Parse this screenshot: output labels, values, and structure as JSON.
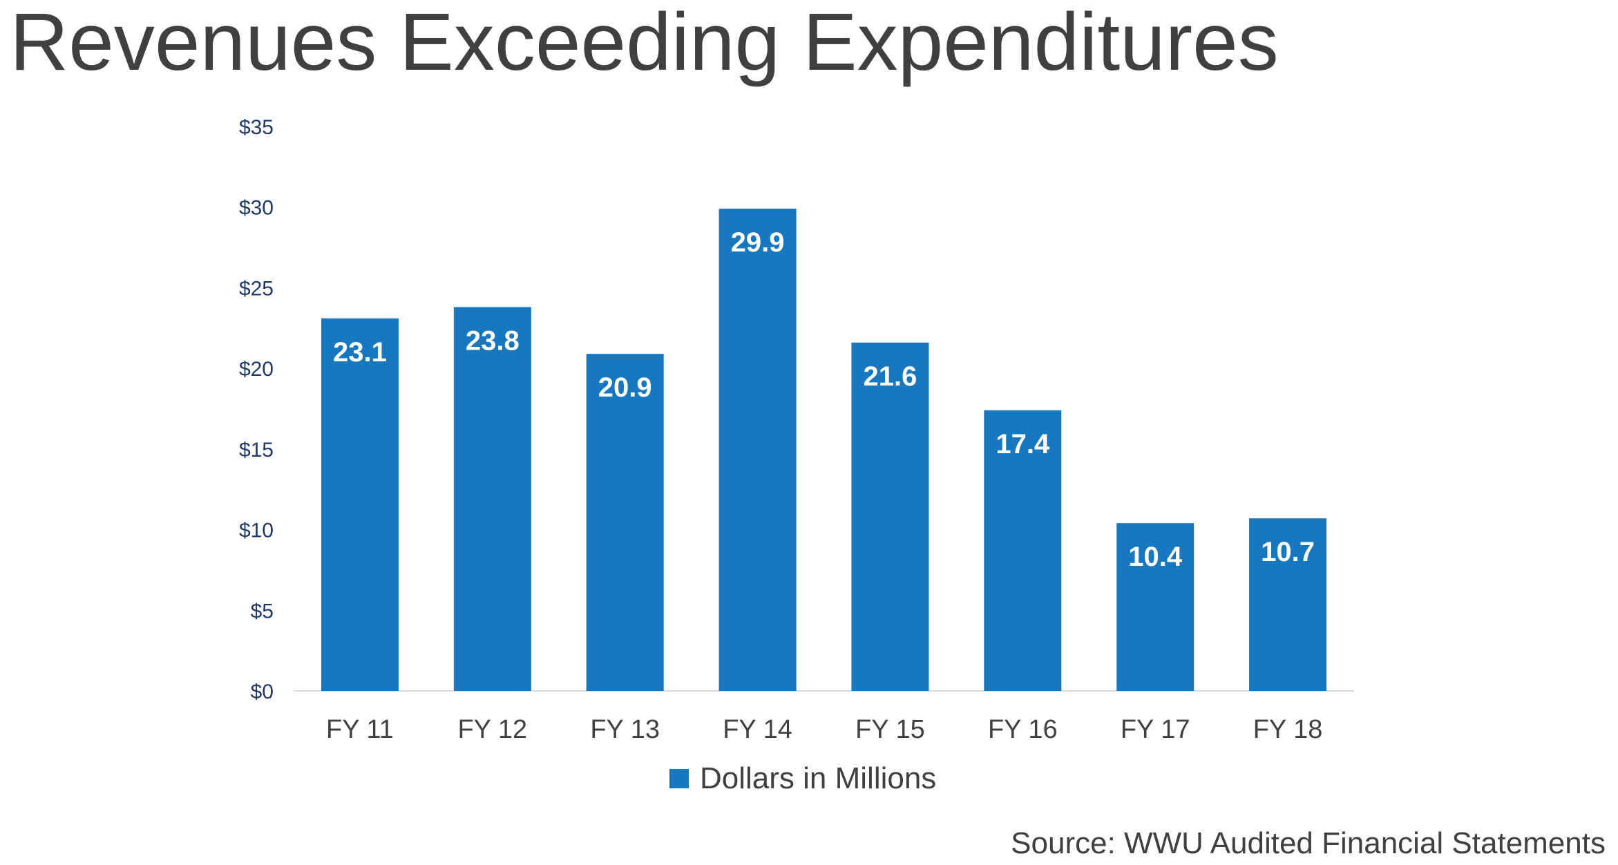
{
  "page": {
    "title": "Revenues Exceeding Expenditures",
    "source": "Source:  WWU Audited Financial Statements"
  },
  "chart_data": {
    "type": "bar",
    "title": "",
    "xlabel": "",
    "ylabel": "",
    "categories": [
      "FY 11",
      "FY 12",
      "FY 13",
      "FY 14",
      "FY 15",
      "FY 16",
      "FY 17",
      "FY 18"
    ],
    "series": [
      {
        "name": "Dollars in Millions",
        "values": [
          23.1,
          23.8,
          20.9,
          29.9,
          21.6,
          17.4,
          10.4,
          10.7
        ],
        "value_labels": [
          "23.1",
          "23.8",
          "20.9",
          "29.9",
          "21.6",
          "17.4",
          "10.4",
          "10.7"
        ]
      }
    ],
    "ylim": [
      0,
      35
    ],
    "y_ticks": [
      0,
      5,
      10,
      15,
      20,
      25,
      30,
      35
    ],
    "y_tick_labels": [
      "$0",
      "$5",
      "$10",
      "$15",
      "$20",
      "$25",
      "$30",
      "$35"
    ],
    "grid": false,
    "legend_position": "bottom-center",
    "colors": {
      "bar": "#1778C0",
      "y_tick_text": "#1F3864",
      "x_tick_text": "#404040",
      "axis_line": "#D9D9D9",
      "data_label": "#FFFFFF",
      "legend_text": "#404040"
    }
  }
}
